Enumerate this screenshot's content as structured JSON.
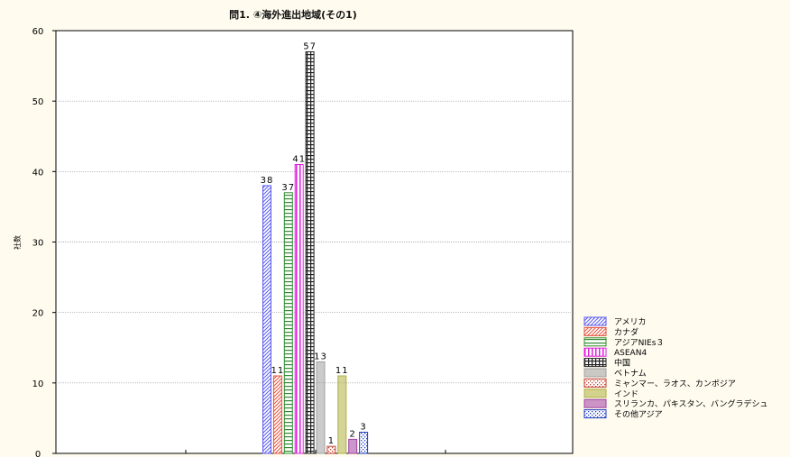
{
  "chart_data": {
    "type": "bar",
    "title": "問1. ④海外進出地域(その1)",
    "ylabel": "社数",
    "xlabel": "",
    "ylim": [
      0,
      60
    ],
    "yticks": [
      0,
      10,
      20,
      30,
      40,
      50,
      60
    ],
    "grid": true,
    "legend_position": "bottom-right",
    "series": [
      {
        "name": "アメリカ",
        "value": 38,
        "color": "#5a5af0",
        "pattern": "diag"
      },
      {
        "name": "カナダ",
        "value": 11,
        "color": "#e8503c",
        "pattern": "diag"
      },
      {
        "name": "アジアNIEs３",
        "value": 37,
        "color": "#2e8b2e",
        "pattern": "hlines"
      },
      {
        "name": "ASEAN4",
        "value": 41,
        "color": "#e020e0",
        "pattern": "vlines"
      },
      {
        "name": "中国",
        "value": 57,
        "color": "#202020",
        "pattern": "grid"
      },
      {
        "name": "ベトナム",
        "value": 13,
        "color": "#a0a0a0",
        "pattern": "solid"
      },
      {
        "name": "ミャンマー、ラオス、カンボジア",
        "value": 1,
        "color": "#c04030",
        "pattern": "dots"
      },
      {
        "name": "インド",
        "value": 11,
        "color": "#b0b040",
        "pattern": "solid"
      },
      {
        "name": "スリランカ、パキスタン、バングラデシュ",
        "value": 2,
        "color": "#a040a0",
        "pattern": "solid"
      },
      {
        "name": "その他アジア",
        "value": 3,
        "color": "#2040c0",
        "pattern": "dots"
      }
    ]
  }
}
